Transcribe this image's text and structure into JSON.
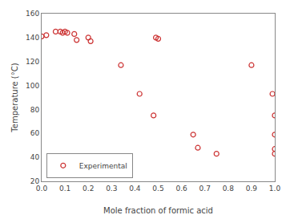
{
  "chart_data": {
    "type": "scatter",
    "x": [
      0.0,
      0.02,
      0.06,
      0.08,
      0.09,
      0.1,
      0.11,
      0.14,
      0.15,
      0.2,
      0.21,
      0.34,
      0.42,
      0.48,
      0.49,
      0.5,
      0.65,
      0.67,
      0.75,
      0.9,
      0.99,
      1.0,
      1.0,
      1.0,
      1.0
    ],
    "series": [
      {
        "name": "Experimental",
        "color": "#cc3333",
        "marker": "open_circle",
        "values": [
          141,
          142,
          145,
          145,
          144,
          145,
          144,
          143,
          138,
          140,
          137,
          117,
          93,
          75,
          140,
          139,
          59,
          48,
          43,
          117,
          93,
          75,
          59,
          47,
          43
        ]
      }
    ],
    "xlabel": "Mole fraction of formic acid",
    "ylabel": "Temperature (°C)",
    "xlim": [
      0.0,
      1.0
    ],
    "ylim": [
      20,
      160
    ],
    "xticks": [
      {
        "value": 0.0,
        "label": "0.0"
      },
      0.1,
      0.2,
      0.3,
      0.4,
      0.5,
      0.6,
      0.7,
      0.8,
      0.9,
      {
        "value": 1.0,
        "label": "1.0"
      }
    ],
    "yticks": [
      20,
      40,
      60,
      80,
      100,
      120,
      140,
      160
    ],
    "grid": false,
    "legend": "lower left"
  }
}
